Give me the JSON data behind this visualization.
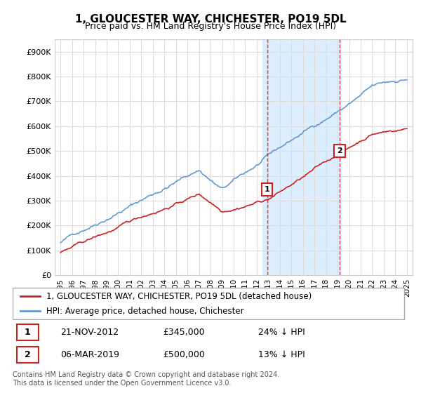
{
  "title": "1, GLOUCESTER WAY, CHICHESTER, PO19 5DL",
  "subtitle": "Price paid vs. HM Land Registry's House Price Index (HPI)",
  "yticks": [
    0,
    100000,
    200000,
    300000,
    400000,
    500000,
    600000,
    700000,
    800000,
    900000
  ],
  "ytick_labels": [
    "£0",
    "£100K",
    "£200K",
    "£300K",
    "£400K",
    "£500K",
    "£600K",
    "£700K",
    "£800K",
    "£900K"
  ],
  "ylim": [
    0,
    950000
  ],
  "xlim_start": 1994.5,
  "xlim_end": 2025.5,
  "background_color": "#ffffff",
  "plot_bg_color": "#ffffff",
  "grid_color": "#dddddd",
  "hpi_color": "#6699cc",
  "price_color": "#cc2222",
  "transaction1_x": 2012.9,
  "transaction1_y": 345000,
  "transaction1_label": "1",
  "transaction2_x": 2019.17,
  "transaction2_y": 500000,
  "transaction2_label": "2",
  "highlight_x1_start": 2012.5,
  "highlight_x1_end": 2019.3,
  "highlight_color": "#ddeeff",
  "legend_line1": "1, GLOUCESTER WAY, CHICHESTER, PO19 5DL (detached house)",
  "legend_line2": "HPI: Average price, detached house, Chichester",
  "note1_label": "1",
  "note1_date": "21-NOV-2012",
  "note1_price": "£345,000",
  "note1_hpi": "24% ↓ HPI",
  "note2_label": "2",
  "note2_date": "06-MAR-2019",
  "note2_price": "£500,000",
  "note2_hpi": "13% ↓ HPI",
  "footer": "Contains HM Land Registry data © Crown copyright and database right 2024.\nThis data is licensed under the Open Government Licence v3.0."
}
